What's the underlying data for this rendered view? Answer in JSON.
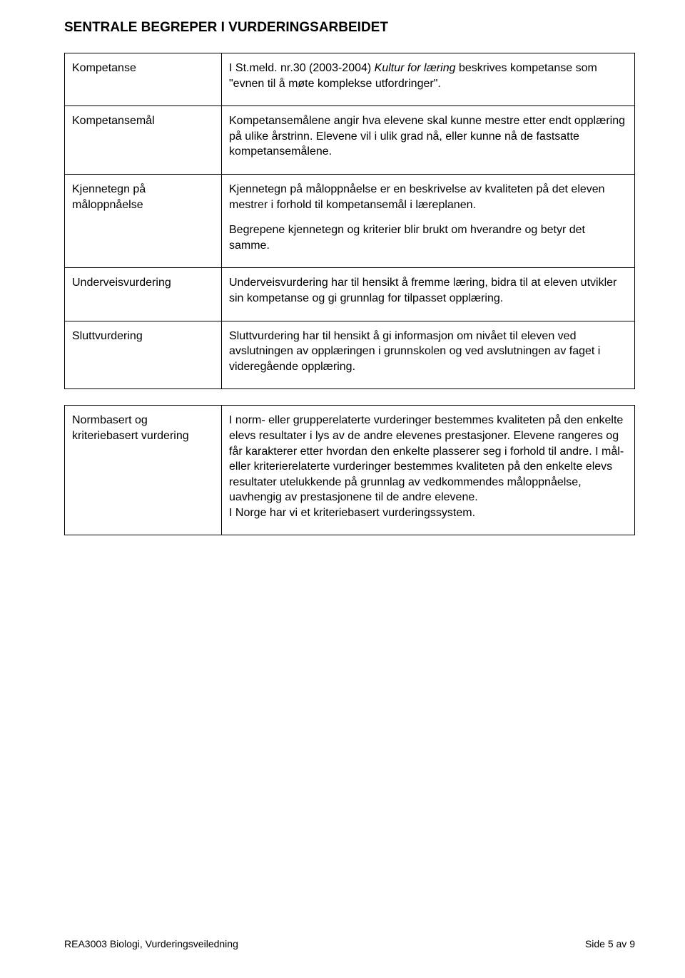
{
  "heading": "SENTRALE BEGREPER I VURDERINGSARBEIDET",
  "table1": {
    "rows": [
      {
        "term": "Kompetanse",
        "def_pre": "I St.meld. nr.30 (2003-2004) ",
        "def_italic": "Kultur for læring",
        "def_post": " beskrives kompetanse som \"evnen til å møte komplekse utfordringer\"."
      },
      {
        "term": "Kompetansemål",
        "def": "Kompetansemålene angir hva elevene skal kunne mestre etter endt opplæring på ulike årstrinn. Elevene vil i ulik grad nå, eller kunne nå de fastsatte kompetansemålene."
      },
      {
        "term": "Kjennetegn på måloppnåelse",
        "def_p1": "Kjennetegn på måloppnåelse er en beskrivelse av kvaliteten på det eleven mestrer i forhold til kompetansemål i læreplanen.",
        "def_p2": "Begrepene kjennetegn og kriterier blir brukt om hverandre og betyr det samme."
      },
      {
        "term": "Underveisvurdering",
        "def": "Underveisvurdering har til hensikt å fremme læring, bidra til at eleven utvikler sin kompetanse og gi grunnlag for tilpasset opplæring."
      },
      {
        "term": "Sluttvurdering",
        "def": "Sluttvurdering har til hensikt å gi informasjon om nivået til eleven ved avslutningen av opplæringen i grunnskolen og ved avslutningen av faget i videregående opplæring."
      }
    ]
  },
  "table2": {
    "rows": [
      {
        "term": "Normbasert og kriteriebasert vurdering",
        "def": "I norm- eller grupperelaterte vurderinger bestemmes kvaliteten på den enkelte elevs resultater i lys av de andre elevenes prestasjoner. Elevene rangeres og får karakterer etter hvordan den enkelte plasserer seg i forhold til andre. I mål- eller kriterierelaterte vurderinger bestemmes kvaliteten på den enkelte elevs resultater utelukkende på grunnlag av vedkommendes måloppnåelse, uavhengig av prestasjonene til de andre elevene.\nI Norge har vi et kriteriebasert vurderingssystem."
      }
    ]
  },
  "footer": {
    "left": "REA3003 Biologi, Vurderingsveiledning",
    "right": "Side 5 av 9"
  }
}
